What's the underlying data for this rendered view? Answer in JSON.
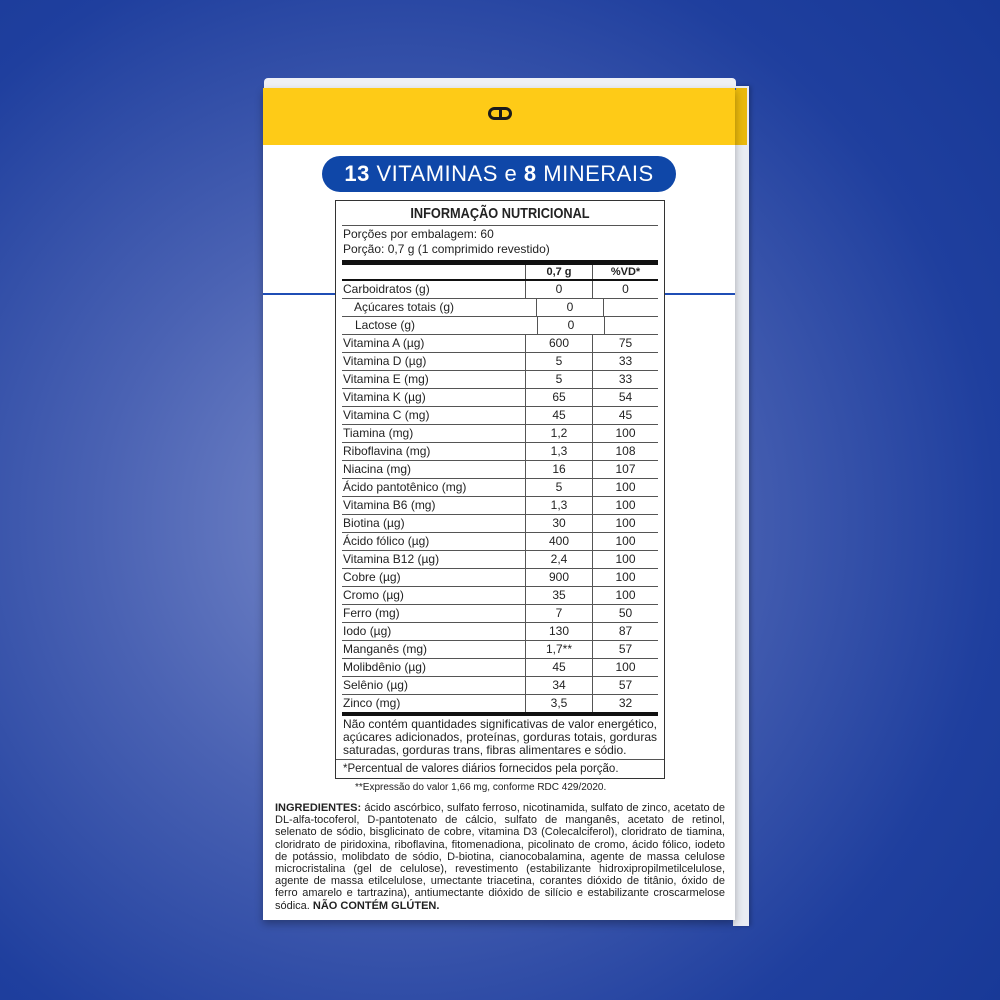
{
  "banner": {
    "num1": "13",
    "word1": "VITAMINAS",
    "conj": "e",
    "num2": "8",
    "word2": "MINERAIS"
  },
  "table": {
    "title": "INFORMAÇÃO NUTRICIONAL",
    "servings": "Porções por embalagem: 60",
    "portion": "Porção: 0,7 g (1 comprimido revestido)",
    "col_qty": "0,7 g",
    "col_vd": "%VD*",
    "rows": [
      {
        "name": "Carboidratos (g)",
        "qty": "0",
        "vd": "0"
      },
      {
        "name": "Açúcares totais (g)",
        "qty": "0",
        "vd": "",
        "indent": 1
      },
      {
        "name": "Lactose (g)",
        "qty": "0",
        "vd": "",
        "indent": 2
      },
      {
        "name": "Vitamina A (µg)",
        "qty": "600",
        "vd": "75"
      },
      {
        "name": "Vitamina D (µg)",
        "qty": "5",
        "vd": "33"
      },
      {
        "name": "Vitamina E (mg)",
        "qty": "5",
        "vd": "33"
      },
      {
        "name": "Vitamina K (µg)",
        "qty": "65",
        "vd": "54"
      },
      {
        "name": "Vitamina C (mg)",
        "qty": "45",
        "vd": "45"
      },
      {
        "name": "Tiamina (mg)",
        "qty": "1,2",
        "vd": "100"
      },
      {
        "name": "Riboflavina (mg)",
        "qty": "1,3",
        "vd": "108"
      },
      {
        "name": "Niacina (mg)",
        "qty": "16",
        "vd": "107"
      },
      {
        "name": "Ácido pantotênico (mg)",
        "qty": "5",
        "vd": "100"
      },
      {
        "name": "Vitamina B6 (mg)",
        "qty": "1,3",
        "vd": "100"
      },
      {
        "name": "Biotina (µg)",
        "qty": "30",
        "vd": "100"
      },
      {
        "name": "Ácido fólico (µg)",
        "qty": "400",
        "vd": "100"
      },
      {
        "name": "Vitamina B12 (µg)",
        "qty": "2,4",
        "vd": "100"
      },
      {
        "name": "Cobre (µg)",
        "qty": "900",
        "vd": "100"
      },
      {
        "name": "Cromo (µg)",
        "qty": "35",
        "vd": "100"
      },
      {
        "name": "Ferro (mg)",
        "qty": "7",
        "vd": "50"
      },
      {
        "name": "Iodo (µg)",
        "qty": "130",
        "vd": "87"
      },
      {
        "name": "Manganês (mg)",
        "qty": "1,7**",
        "vd": "57"
      },
      {
        "name": "Molibdênio (µg)",
        "qty": "45",
        "vd": "100"
      },
      {
        "name": "Selênio (µg)",
        "qty": "34",
        "vd": "57"
      },
      {
        "name": "Zinco (mg)",
        "qty": "3,5",
        "vd": "32"
      }
    ],
    "note": "Não contém quantidades significativas de valor energético, açúcares adicionados, proteínas, gorduras totais, gorduras saturadas, gorduras trans, fibras alimentares e sódio.",
    "vd_note": "*Percentual de valores diários fornecidos pela porção."
  },
  "footnote": "**Expressão do valor 1,66 mg, conforme RDC 429/2020.",
  "ingredients": {
    "label": "INGREDIENTES:",
    "text": "ácido ascórbico, sulfato ferroso, nicotinamida, sulfato de zinco, acetato de DL-alfa-tocoferol, D-pantotenato de cálcio, sulfato de manganês, acetato de retinol, selenato de sódio, bisglicinato de cobre, vitamina D3 (Colecalciferol), cloridrato de tiamina, cloridrato de piridoxina, riboflavina, fitomenadiona, picolinato de cromo, ácido fólico, iodeto de potássio, molibdato de sódio, D-biotina, cianocobalamina, agente de massa celulose microcristalina (gel de celulose), revestimento (estabilizante hidroxipropilmetilcelulose, agente de massa etilcelulose, umectante triacetina, corantes dióxido de titânio, óxido de ferro amarelo e tartrazina), antiumectante dióxido de silício e estabilizante croscarmelose sódica.",
    "gluten": "NÃO CONTÉM GLÚTEN."
  },
  "colors": {
    "background": "#2a4aa6",
    "band": "#fecb17",
    "banner": "#0f47a8"
  }
}
